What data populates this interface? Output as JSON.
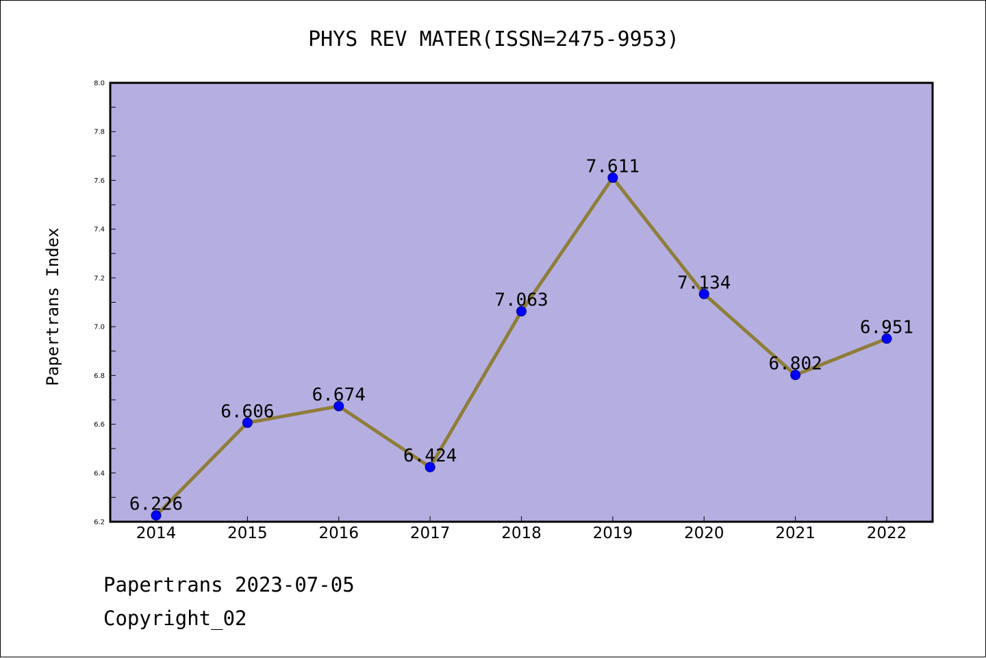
{
  "chart_data": {
    "type": "line",
    "title": "PHYS REV MATER(ISSN=2475-9953)",
    "xlabel": "",
    "ylabel": "Papertrans Index",
    "categories": [
      "2014",
      "2015",
      "2016",
      "2017",
      "2018",
      "2019",
      "2020",
      "2021",
      "2022"
    ],
    "series": [
      {
        "values": [
          6.226,
          6.606,
          6.674,
          6.424,
          7.063,
          7.611,
          7.134,
          6.802,
          6.951
        ],
        "labels": [
          "6.226",
          "6.606",
          "6.674",
          "6.424",
          "7.063",
          "7.611",
          "7.134",
          "6.802",
          "6.951"
        ]
      }
    ],
    "ylim": [
      6.2,
      8.0
    ],
    "yticks": [
      "6.2",
      "6.4",
      "6.6",
      "6.8",
      "7.0",
      "7.2",
      "7.4",
      "7.6",
      "7.8",
      "8.0"
    ],
    "grid": false,
    "legend": "none",
    "colors": {
      "plot_background": "#b5afe1",
      "line": "#8f7d3a",
      "marker": "#0000ff",
      "marker_edge": "#000080",
      "axis": "#000000"
    }
  },
  "footer": {
    "line1": "Papertrans 2023-07-05",
    "line2": "Copyright_02"
  }
}
